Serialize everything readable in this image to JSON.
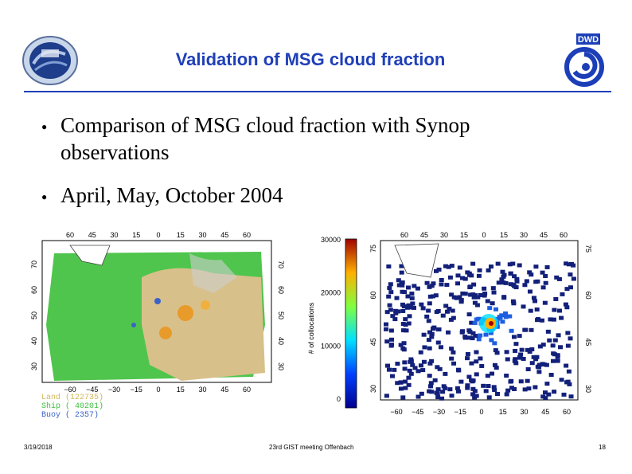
{
  "slide": {
    "title": "Validation of MSG cloud fraction",
    "bullets": [
      "Comparison of MSG cloud fraction with Synop observations",
      "April, May, October 2004"
    ],
    "footer_date": "3/19/2018",
    "footer_center": "23rd GIST meeting Offenbach",
    "footer_page": "18"
  },
  "logos": {
    "left": "ssf-mission-logo",
    "right_text": "DWD"
  },
  "left_map": {
    "lon_ticks_top": [
      "60",
      "45",
      "30",
      "15",
      "0",
      "15",
      "30",
      "45",
      "60"
    ],
    "lon_ticks_bottom": [
      "−60",
      "−45",
      "−30",
      "−15",
      "0",
      "15",
      "30",
      "45",
      "60"
    ],
    "lat_ticks": [
      "70",
      "60",
      "50",
      "40",
      "30"
    ],
    "legend": [
      {
        "label": "Land (122735)",
        "color": "#d2b85a"
      },
      {
        "label": "Ship ( 40201)",
        "color": "#3fbf3f"
      },
      {
        "label": "Buoy (  2357)",
        "color": "#3a63c8"
      }
    ]
  },
  "colorbar": {
    "axis_label": "# of collocations",
    "ticks": [
      "30000",
      "20000",
      "10000",
      "0"
    ]
  },
  "right_map": {
    "lon_ticks_top": [
      "60",
      "45",
      "30",
      "15",
      "0",
      "15",
      "30",
      "45",
      "60"
    ],
    "lon_ticks_bottom": [
      "−60",
      "−45",
      "−30",
      "−15",
      "0",
      "15",
      "30",
      "45",
      "60"
    ],
    "lat_ticks": [
      "75",
      "60",
      "45",
      "30"
    ]
  },
  "colors": {
    "title": "#1f3fb8",
    "ocean_green": "#3cbf3a",
    "land_tan": "#d8c08a",
    "navy": "#13207a"
  }
}
